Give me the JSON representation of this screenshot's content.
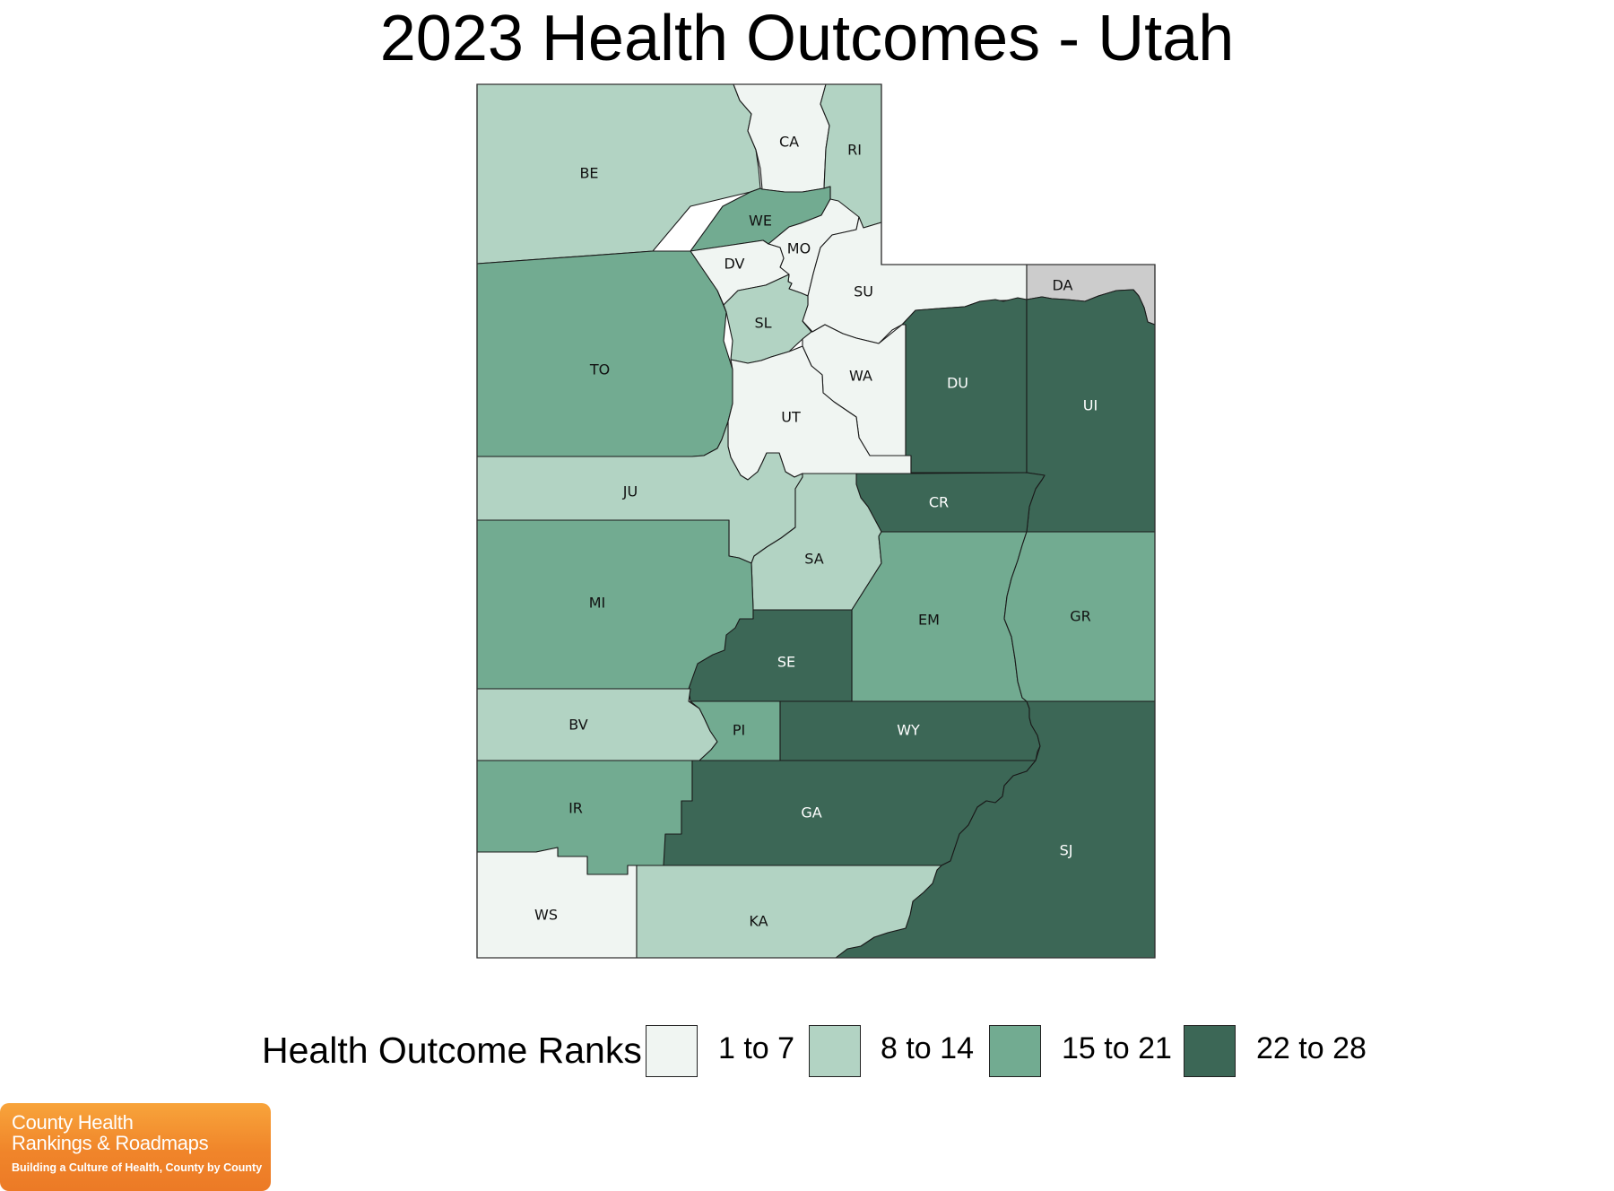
{
  "title": "2023 Health Outcomes - Utah",
  "legend": {
    "title": "Health Outcome Ranks",
    "items": [
      {
        "label": "1 to 7",
        "color": "#f0f5f2"
      },
      {
        "label": "8 to 14",
        "color": "#b2d3c3"
      },
      {
        "label": "15 to 21",
        "color": "#72ab91"
      },
      {
        "label": "22 to 28",
        "color": "#3c6756"
      }
    ]
  },
  "no_data_color": "#cccccc",
  "counties": [
    {
      "code": "BE",
      "tier": 2
    },
    {
      "code": "CA",
      "tier": 1
    },
    {
      "code": "RI",
      "tier": 2
    },
    {
      "code": "WE",
      "tier": 3
    },
    {
      "code": "MO",
      "tier": 1
    },
    {
      "code": "DV",
      "tier": 1
    },
    {
      "code": "SU",
      "tier": 1
    },
    {
      "code": "DA",
      "tier": 0
    },
    {
      "code": "TO",
      "tier": 3
    },
    {
      "code": "SL",
      "tier": 2
    },
    {
      "code": "WA",
      "tier": 1
    },
    {
      "code": "UT",
      "tier": 1
    },
    {
      "code": "DU",
      "tier": 4
    },
    {
      "code": "UI",
      "tier": 4
    },
    {
      "code": "JU",
      "tier": 2
    },
    {
      "code": "CR",
      "tier": 4
    },
    {
      "code": "SA",
      "tier": 2
    },
    {
      "code": "MI",
      "tier": 3
    },
    {
      "code": "EM",
      "tier": 3
    },
    {
      "code": "GR",
      "tier": 3
    },
    {
      "code": "SE",
      "tier": 4
    },
    {
      "code": "BV",
      "tier": 2
    },
    {
      "code": "PI",
      "tier": 3
    },
    {
      "code": "WY",
      "tier": 4
    },
    {
      "code": "IR",
      "tier": 3
    },
    {
      "code": "GA",
      "tier": 4
    },
    {
      "code": "SJ",
      "tier": 4
    },
    {
      "code": "WS",
      "tier": 1
    },
    {
      "code": "KA",
      "tier": 2
    }
  ],
  "logo": {
    "line1": "County Health",
    "line2": "Rankings & Roadmaps",
    "tagline": "Building a Culture of Health, County by County"
  }
}
